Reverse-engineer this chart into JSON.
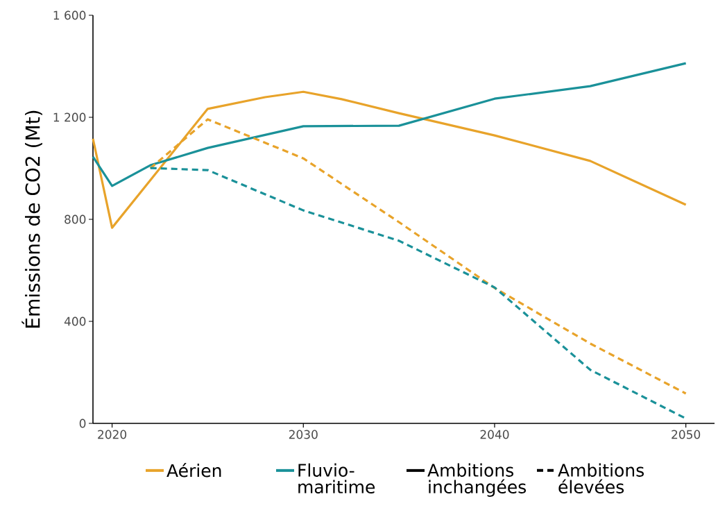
{
  "chart_data": {
    "type": "line",
    "ylabel": "Émissions de CO2 (Mt)",
    "xlim": [
      2019,
      2051.5
    ],
    "xticks": [
      2020,
      2030,
      2040,
      2050
    ],
    "ylim": [
      0,
      1600
    ],
    "yticks": [
      0,
      400,
      800,
      {
        "value": 1200,
        "label": "1 200"
      },
      {
        "value": 1600,
        "label": "1 600"
      }
    ],
    "grid": false,
    "legend": "bottom",
    "marker": "none",
    "series": [
      {
        "name": "Aérien",
        "color": "#e8a32a",
        "line_style": "solid",
        "x": [
          2019,
          2020,
          2025,
          2028,
          2030,
          2032,
          2035,
          2040,
          2045,
          2050
        ],
        "values": [
          1116,
          767,
          1233,
          1279,
          1300,
          1271,
          1216,
          1129,
          1029,
          857
        ]
      },
      {
        "name": "Fluvio-maritime",
        "color": "#1a9199",
        "line_style": "solid",
        "x": [
          2019,
          2020,
          2022,
          2025,
          2030,
          2035,
          2040,
          2045,
          2050
        ],
        "values": [
          1045,
          931,
          1012,
          1080,
          1165,
          1167,
          1273,
          1322,
          1412
        ]
      },
      {
        "color": "#e8a32a",
        "line_style": "dashed",
        "x": [
          2022,
          2025,
          2030,
          2035,
          2040,
          2045,
          2050
        ],
        "values": [
          1000,
          1192,
          1039,
          789,
          531,
          313,
          117
        ]
      },
      {
        "color": "#1a9199",
        "line_style": "dashed",
        "x": [
          2022,
          2025,
          2030,
          2035,
          2040,
          2045,
          2050
        ],
        "values": [
          1001,
          993,
          835,
          716,
          533,
          210,
          19
        ]
      },
      {
        "name": "Ambitions inchangées",
        "color": "#000000",
        "line_style": "solid"
      },
      {
        "name": "Ambitions élevées",
        "color": "#000000",
        "line_style": "dashed"
      }
    ]
  }
}
